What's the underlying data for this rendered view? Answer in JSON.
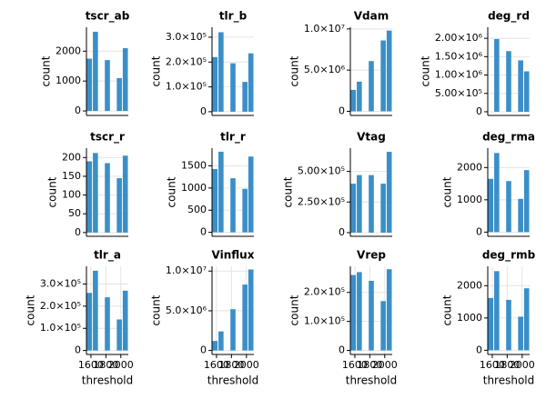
{
  "chart_data": [
    {
      "type": "bar",
      "title": "tscr_ab",
      "ylabel": "count",
      "color": "#3a8fc8",
      "grid": true,
      "x": [
        1580,
        1660,
        1820,
        1980,
        2060
      ],
      "values": [
        1750,
        2650,
        1700,
        1100,
        2100
      ],
      "xlim": [
        1540,
        2100
      ],
      "ylim": [
        -150,
        2800
      ],
      "yticks": [
        0,
        1000,
        2000
      ]
    },
    {
      "type": "bar",
      "title": "tlr_b",
      "ylabel": "count",
      "color": "#3a8fc8",
      "grid": true,
      "x": [
        1580,
        1660,
        1820,
        1980,
        2060
      ],
      "values": [
        220000,
        320000,
        195000,
        120000,
        235000
      ],
      "xlim": [
        1540,
        2100
      ],
      "ylim": [
        -15000,
        340000
      ],
      "yticks": [
        0,
        {
          "value": 100000,
          "label": "1.0×10⁵"
        },
        {
          "value": 200000,
          "label": "2.0×10⁵"
        },
        {
          "value": 300000,
          "label": "3.0×10⁵"
        }
      ]
    },
    {
      "type": "bar",
      "title": "Vdam",
      "ylabel": "count",
      "color": "#3a8fc8",
      "grid": true,
      "x": [
        1580,
        1660,
        1820,
        1980,
        2060
      ],
      "values": [
        2600000,
        3600000,
        6100000,
        8600000,
        9800000
      ],
      "xlim": [
        1540,
        2100
      ],
      "ylim": [
        -500000,
        10200000
      ],
      "yticks": [
        0,
        {
          "value": 5000000,
          "label": "5.0×10⁶"
        },
        {
          "value": 10000000,
          "label": "1.0×10⁷"
        }
      ]
    },
    {
      "type": "bar",
      "title": "deg_rd",
      "ylabel": "count",
      "color": "#3a8fc8",
      "grid": true,
      "x": [
        1660,
        1820,
        1980,
        2060
      ],
      "values": [
        1980000,
        1650000,
        1400000,
        1100000
      ],
      "xlim": [
        1540,
        2100
      ],
      "ylim": [
        -100000,
        2300000
      ],
      "yticks": [
        0,
        {
          "value": 500000,
          "label": "5.00×10⁵"
        },
        {
          "value": 1000000,
          "label": "1.00×10⁶"
        },
        {
          "value": 1500000,
          "label": "1.50×10⁶"
        },
        {
          "value": 2000000,
          "label": "2.00×10⁶"
        }
      ]
    },
    {
      "type": "bar",
      "title": "tscr_r",
      "ylabel": "count",
      "color": "#3a8fc8",
      "grid": true,
      "x": [
        1580,
        1660,
        1820,
        1980,
        2060
      ],
      "values": [
        190,
        212,
        185,
        145,
        205
      ],
      "xlim": [
        1540,
        2100
      ],
      "ylim": [
        -10,
        225
      ],
      "yticks": [
        0,
        50,
        100,
        150,
        200
      ]
    },
    {
      "type": "bar",
      "title": "tlr_r",
      "ylabel": "count",
      "color": "#3a8fc8",
      "grid": true,
      "x": [
        1580,
        1660,
        1820,
        1980,
        2060
      ],
      "values": [
        1430,
        1820,
        1220,
        980,
        1710
      ],
      "xlim": [
        1540,
        2100
      ],
      "ylim": [
        -90,
        1900
      ],
      "yticks": [
        0,
        500,
        1000,
        1500
      ]
    },
    {
      "type": "bar",
      "title": "Vtag",
      "ylabel": "count",
      "color": "#3a8fc8",
      "grid": true,
      "x": [
        1580,
        1660,
        1820,
        1980,
        2060
      ],
      "values": [
        400000,
        470000,
        470000,
        400000,
        660000
      ],
      "xlim": [
        1540,
        2100
      ],
      "ylim": [
        -30000,
        690000
      ],
      "yticks": [
        0,
        {
          "value": 250000,
          "label": "2.50×10⁵"
        },
        {
          "value": 500000,
          "label": "5.00×10⁵"
        }
      ]
    },
    {
      "type": "bar",
      "title": "deg_rma",
      "ylabel": "count",
      "color": "#3a8fc8",
      "grid": true,
      "x": [
        1580,
        1660,
        1820,
        1980,
        2060
      ],
      "values": [
        1650,
        2450,
        1580,
        1030,
        1920
      ],
      "xlim": [
        1540,
        2100
      ],
      "ylim": [
        -130,
        2600
      ],
      "yticks": [
        0,
        1000,
        2000
      ]
    },
    {
      "type": "bar",
      "title": "tlr_a",
      "ylabel": "count",
      "xlabel": "threshold",
      "color": "#3a8fc8",
      "grid": true,
      "x": [
        1580,
        1660,
        1820,
        1980,
        2060
      ],
      "values": [
        260000,
        360000,
        240000,
        140000,
        270000
      ],
      "xlim": [
        1540,
        2100
      ],
      "xticks": [
        1600,
        1800,
        2000
      ],
      "ylim": [
        -18000,
        380000
      ],
      "yticks": [
        0,
        {
          "value": 100000,
          "label": "1.0×10⁵"
        },
        {
          "value": 200000,
          "label": "2.0×10⁵"
        },
        {
          "value": 300000,
          "label": "3.0×10⁵"
        }
      ]
    },
    {
      "type": "bar",
      "title": "Vinflux",
      "ylabel": "count",
      "xlabel": "threshold",
      "color": "#3a8fc8",
      "grid": true,
      "x": [
        1580,
        1660,
        1820,
        1980,
        2060
      ],
      "values": [
        1200000,
        2400000,
        5200000,
        8300000,
        10200000
      ],
      "xlim": [
        1540,
        2100
      ],
      "xticks": [
        1600,
        1800,
        2000
      ],
      "ylim": [
        -500000,
        10600000
      ],
      "yticks": [
        0,
        {
          "value": 5000000,
          "label": "5.0×10⁶"
        },
        {
          "value": 10000000,
          "label": "1.0×10⁷"
        }
      ]
    },
    {
      "type": "bar",
      "title": "Vrep",
      "ylabel": "count",
      "xlabel": "threshold",
      "color": "#3a8fc8",
      "grid": true,
      "x": [
        1580,
        1660,
        1820,
        1980,
        2060
      ],
      "values": [
        260000,
        270000,
        240000,
        170000,
        280000
      ],
      "xlim": [
        1540,
        2100
      ],
      "xticks": [
        1600,
        1800,
        2000
      ],
      "ylim": [
        -14000,
        290000
      ],
      "yticks": [
        0,
        {
          "value": 100000,
          "label": "1.0×10⁵"
        },
        {
          "value": 200000,
          "label": "2.0×10⁵"
        }
      ]
    },
    {
      "type": "bar",
      "title": "deg_rmb",
      "ylabel": "count",
      "xlabel": "threshold",
      "color": "#3a8fc8",
      "grid": true,
      "x": [
        1580,
        1660,
        1820,
        1980,
        2060
      ],
      "values": [
        1620,
        2450,
        1560,
        1040,
        1920
      ],
      "xlim": [
        1540,
        2100
      ],
      "xticks": [
        1600,
        1800,
        2000
      ],
      "ylim": [
        -130,
        2600
      ],
      "yticks": [
        0,
        1000,
        2000
      ]
    }
  ]
}
